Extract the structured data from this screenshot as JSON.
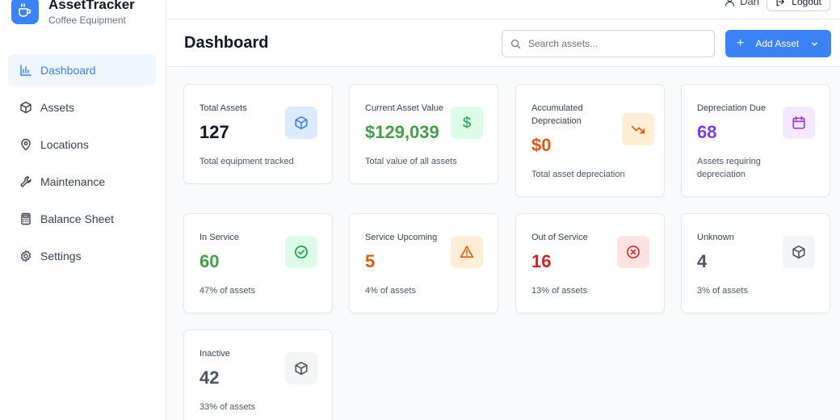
{
  "app": {
    "name": "AssetTracker",
    "subtitle": "Coffee Equipment"
  },
  "sidebar": {
    "items": [
      {
        "label": "Dashboard",
        "icon": "chart-icon",
        "active": true
      },
      {
        "label": "Assets",
        "icon": "box-icon"
      },
      {
        "label": "Locations",
        "icon": "pin-icon"
      },
      {
        "label": "Maintenance",
        "icon": "wrench-icon"
      },
      {
        "label": "Balance Sheet",
        "icon": "calculator-icon"
      },
      {
        "label": "Settings",
        "icon": "gear-icon"
      }
    ]
  },
  "topbar": {
    "user": "Dan",
    "logout": "Logout"
  },
  "header": {
    "title": "Dashboard",
    "search_placeholder": "Search assets...",
    "add_button": "Add Asset"
  },
  "cards": [
    {
      "label": "Total Assets",
      "value": "127",
      "desc": "Total equipment tracked",
      "value_color": "#111827",
      "icon": "box-icon",
      "icon_bg": "#dbeafe",
      "icon_color": "#3b82f6"
    },
    {
      "label": "Current Asset Value",
      "value": "$129,039",
      "desc": "Total value of all assets",
      "value_color": "#43a047",
      "icon": "dollar-icon",
      "icon_bg": "#dcfce7",
      "icon_color": "#16a34a"
    },
    {
      "label": "Accumulated Depreciation",
      "value": "$0",
      "desc": "Total asset depreciation",
      "value_color": "#e8590c",
      "icon": "trend-down-icon",
      "icon_bg": "#ffedd5",
      "icon_color": "#ea580c"
    },
    {
      "label": "Depreciation Due",
      "value": "68",
      "desc": "Assets requiring depreciation",
      "value_color": "#7c3aed",
      "icon": "calendar-icon",
      "icon_bg": "#f3e8ff",
      "icon_color": "#9333ea"
    },
    {
      "label": "In Service",
      "value": "60",
      "desc": "47% of assets",
      "value_color": "#43a047",
      "icon": "check-circle-icon",
      "icon_bg": "#dcfce7",
      "icon_color": "#16a34a"
    },
    {
      "label": "Service Upcoming",
      "value": "5",
      "desc": "4% of assets",
      "value_color": "#e8590c",
      "icon": "warning-icon",
      "icon_bg": "#ffedd5",
      "icon_color": "#ea580c"
    },
    {
      "label": "Out of Service",
      "value": "16",
      "desc": "13% of assets",
      "value_color": "#c62828",
      "icon": "x-circle-icon",
      "icon_bg": "#fee2e2",
      "icon_color": "#dc2626"
    },
    {
      "label": "Unknown",
      "value": "4",
      "desc": "3% of assets",
      "value_color": "#4b5563",
      "icon": "box-icon",
      "icon_bg": "#f3f4f6",
      "icon_color": "#4b5563"
    },
    {
      "label": "Inactive",
      "value": "42",
      "desc": "33% of assets",
      "value_color": "#4b5563",
      "icon": "box-icon",
      "icon_bg": "#f3f4f6",
      "icon_color": "#4b5563"
    }
  ]
}
